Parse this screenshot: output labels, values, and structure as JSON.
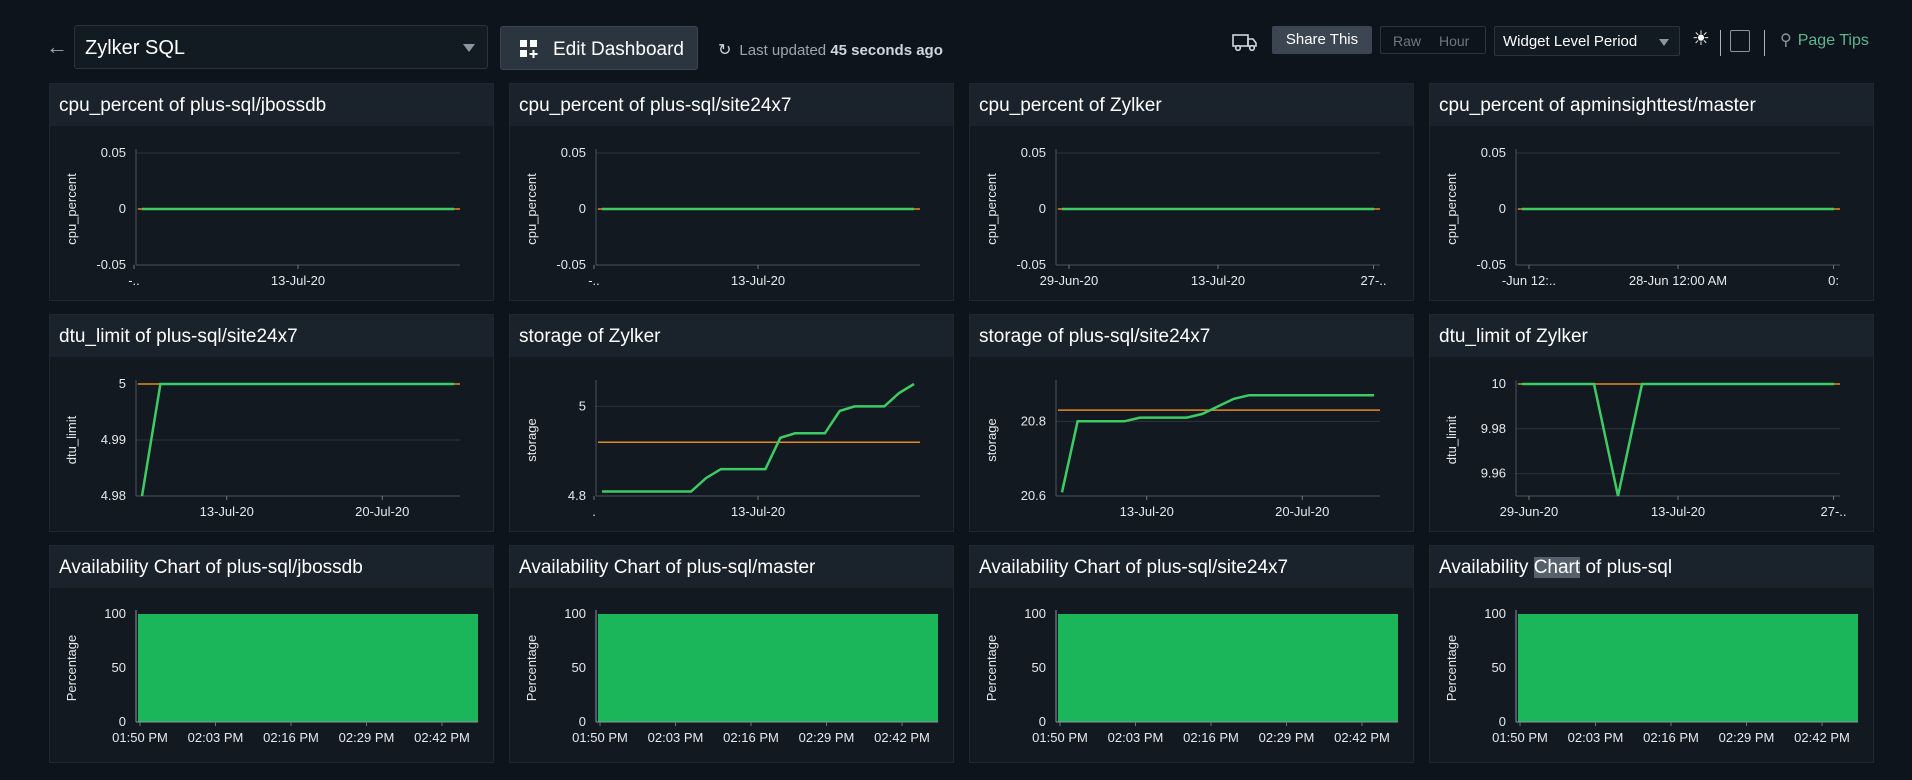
{
  "topbar": {
    "back_icon": "arrow-left-icon",
    "dashboard_name": "Zylker SQL",
    "edit_label": "Edit Dashboard",
    "updated_prefix": "Last updated",
    "updated_value": "45 seconds ago",
    "share_label": "Share This",
    "raw_label": "Raw",
    "hour_label": "Hour",
    "period_label": "Widget Level Period",
    "page_tips_label": "Page Tips"
  },
  "colors": {
    "green": "#1cb65a",
    "line_green": "#3dcc63",
    "orange": "#e58b1c",
    "bg": "#0e141b"
  },
  "widgets": [
    {
      "title": "cpu_percent of plus-sql/jbossdb",
      "chart_data": {
        "type": "line",
        "ylabel": "cpu_percent",
        "ylim": [
          -0.05,
          0.05
        ],
        "yticks": [
          "0.05",
          "0",
          "-0.05"
        ],
        "xticks": [
          "-..",
          "13-Jul-20"
        ],
        "series": [
          {
            "values": [
              0,
              0,
              0,
              0,
              0
            ]
          }
        ],
        "threshold": 0
      }
    },
    {
      "title": "cpu_percent of plus-sql/site24x7",
      "chart_data": {
        "type": "line",
        "ylabel": "cpu_percent",
        "ylim": [
          -0.05,
          0.05
        ],
        "yticks": [
          "0.05",
          "0",
          "-0.05"
        ],
        "xticks": [
          "-..",
          "13-Jul-20"
        ],
        "series": [
          {
            "values": [
              0,
              0,
              0,
              0,
              0
            ]
          }
        ],
        "threshold": 0
      }
    },
    {
      "title": "cpu_percent of Zylker",
      "chart_data": {
        "type": "line",
        "ylabel": "cpu_percent",
        "ylim": [
          -0.05,
          0.05
        ],
        "yticks": [
          "0.05",
          "0",
          "-0.05"
        ],
        "xticks": [
          "29-Jun-20",
          "13-Jul-20",
          "27-.."
        ],
        "series": [
          {
            "values": [
              0,
              0,
              0,
              0,
              0
            ]
          }
        ],
        "threshold": 0
      }
    },
    {
      "title": "cpu_percent of apminsighttest/master",
      "chart_data": {
        "type": "line",
        "ylabel": "cpu_percent",
        "ylim": [
          -0.05,
          0.05
        ],
        "yticks": [
          "0.05",
          "0",
          "-0.05"
        ],
        "xticks": [
          "-Jun 12:..",
          "28-Jun 12:00 AM",
          "0:"
        ],
        "series": [
          {
            "values": [
              0,
              0,
              0,
              0,
              0
            ]
          }
        ],
        "threshold": 0
      }
    },
    {
      "title": "dtu_limit of plus-sql/site24x7",
      "chart_data": {
        "type": "line",
        "ylabel": "dtu_limit",
        "ylim": [
          4.98,
          5
        ],
        "yticks": [
          "5",
          "4.99",
          "4.98"
        ],
        "xticks": [
          "13-Jul-20",
          "20-Jul-20"
        ],
        "series": [
          {
            "values": [
              4.98,
              5,
              5,
              5,
              5,
              5,
              5,
              5,
              5,
              5,
              5,
              5,
              5,
              5,
              5,
              5,
              5,
              5
            ]
          }
        ],
        "threshold": 5
      }
    },
    {
      "title": "storage of Zylker",
      "chart_data": {
        "type": "line",
        "ylabel": "storage",
        "ylim": [
          4.8,
          5.05
        ],
        "yticks": [
          "5",
          "4.8"
        ],
        "xticks": [
          ".",
          "13-Jul-20"
        ],
        "series": [
          {
            "values": [
              4.81,
              4.81,
              4.81,
              4.81,
              4.81,
              4.81,
              4.81,
              4.84,
              4.86,
              4.86,
              4.86,
              4.86,
              4.93,
              4.94,
              4.94,
              4.94,
              4.99,
              5.0,
              5.0,
              5.0,
              5.03,
              5.05
            ]
          }
        ],
        "threshold": 4.92
      }
    },
    {
      "title": "storage of plus-sql/site24x7",
      "chart_data": {
        "type": "line",
        "ylabel": "storage",
        "ylim": [
          20.6,
          20.9
        ],
        "yticks": [
          "20.8",
          "20.6"
        ],
        "xticks": [
          "13-Jul-20",
          "20-Jul-20"
        ],
        "series": [
          {
            "values": [
              20.61,
              20.8,
              20.8,
              20.8,
              20.8,
              20.81,
              20.81,
              20.81,
              20.81,
              20.82,
              20.84,
              20.86,
              20.87,
              20.87,
              20.87,
              20.87,
              20.87,
              20.87,
              20.87,
              20.87,
              20.87
            ]
          }
        ],
        "threshold": 20.83
      }
    },
    {
      "title": "dtu_limit of Zylker",
      "chart_data": {
        "type": "line",
        "ylabel": "dtu_limit",
        "ylim": [
          9.95,
          10
        ],
        "yticks": [
          "10",
          "9.98",
          "9.96"
        ],
        "xticks": [
          "29-Jun-20",
          "13-Jul-20",
          "27-.."
        ],
        "series": [
          {
            "values": [
              10,
              10,
              10,
              10,
              9.95,
              10,
              10,
              10,
              10,
              10,
              10,
              10,
              10,
              10
            ]
          }
        ],
        "threshold": 10
      }
    },
    {
      "title": "Availability Chart of plus-sql/jbossdb",
      "chart_data": {
        "type": "area",
        "ylabel": "Percentage",
        "ylim": [
          0,
          100
        ],
        "yticks": [
          "100",
          "50",
          "0"
        ],
        "xticks": [
          "01:50 PM",
          "02:03 PM",
          "02:16 PM",
          "02:29 PM",
          "02:42 PM"
        ],
        "series": [
          {
            "values": [
              100,
              100
            ]
          }
        ]
      }
    },
    {
      "title": "Availability Chart of plus-sql/master",
      "chart_data": {
        "type": "area",
        "ylabel": "Percentage",
        "ylim": [
          0,
          100
        ],
        "yticks": [
          "100",
          "50",
          "0"
        ],
        "xticks": [
          "01:50 PM",
          "02:03 PM",
          "02:16 PM",
          "02:29 PM",
          "02:42 PM"
        ],
        "series": [
          {
            "values": [
              100,
              100
            ]
          }
        ]
      }
    },
    {
      "title": "Availability Chart of plus-sql/site24x7",
      "chart_data": {
        "type": "area",
        "ylabel": "Percentage",
        "ylim": [
          0,
          100
        ],
        "yticks": [
          "100",
          "50",
          "0"
        ],
        "xticks": [
          "01:50 PM",
          "02:03 PM",
          "02:16 PM",
          "02:29 PM",
          "02:42 PM"
        ],
        "series": [
          {
            "values": [
              100,
              100
            ]
          }
        ]
      }
    },
    {
      "title": "Availability Chart of plus-sql",
      "chart_data": {
        "type": "area",
        "ylabel": "Percentage",
        "ylim": [
          0,
          100
        ],
        "yticks": [
          "100",
          "50",
          "0"
        ],
        "xticks": [
          "01:50 PM",
          "02:03 PM",
          "02:16 PM",
          "02:29 PM",
          "02:42 PM"
        ],
        "series": [
          {
            "values": [
              100,
              100
            ]
          }
        ]
      }
    }
  ]
}
